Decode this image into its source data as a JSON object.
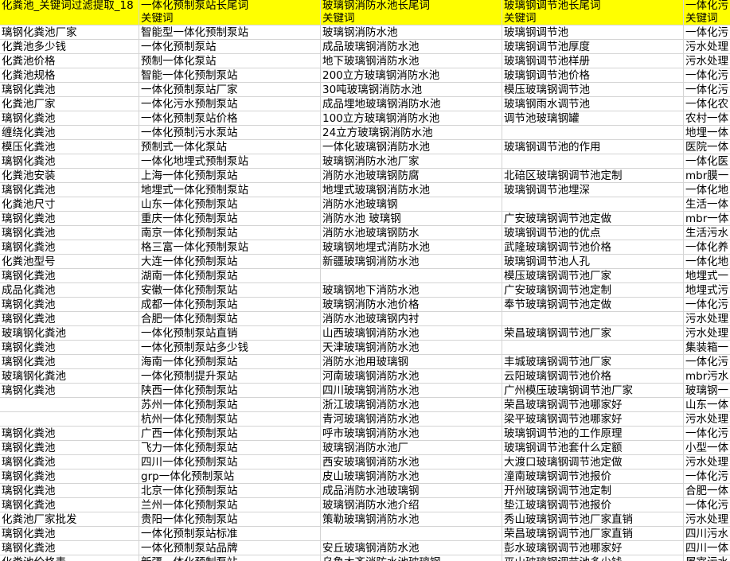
{
  "header": [
    [
      "化粪池_关键词过滤提取_18",
      null
    ],
    [
      "一体化预制泵站长尾词",
      "关键词"
    ],
    [
      "玻璃钢消防水池长尾词",
      "关键词"
    ],
    [
      "玻璃钢调节池长尾词",
      "关键词"
    ],
    [
      "一体化污",
      "关键词"
    ]
  ],
  "rows": [
    [
      "璃钢化粪池厂家",
      "智能型一体化预制泵站",
      "玻璃钢消防水池",
      "玻璃钢调节池",
      "一体化污"
    ],
    [
      "化粪池多少钱",
      "一体化预制泵站",
      "成品玻璃钢消防水池",
      "玻璃钢调节池厚度",
      "污水处理"
    ],
    [
      "化粪池价格",
      "预制一体化泵站",
      "地下玻璃钢消防水池",
      "玻璃钢调节池样册",
      "污水处理"
    ],
    [
      "化粪池规格",
      "智能一体化预制泵站",
      "200立方玻璃钢消防水池",
      "玻璃钢调节池价格",
      "一体化污"
    ],
    [
      "璃钢化粪池",
      "一体化预制泵站厂家",
      "30吨玻璃钢消防水池",
      "模压玻璃钢调节池",
      "一体化污"
    ],
    [
      "化粪池厂家",
      "一体化污水预制泵站",
      "成品埋地玻璃钢消防水池",
      "玻璃钢雨水调节池",
      "一体化农"
    ],
    [
      "璃钢化粪池",
      "一体化预制泵站价格",
      "100立方玻璃钢消防水池",
      "调节池玻璃钢罐",
      "农村一体"
    ],
    [
      "缠绕化粪池",
      "一体化预制污水泵站",
      "24立方玻璃钢消防水池",
      null,
      "地埋一体"
    ],
    [
      "模压化粪池",
      "预制式一体化泵站",
      "一体化玻璃钢消防水池",
      "玻璃钢调节池的作用",
      "医院一体"
    ],
    [
      "璃钢化粪池",
      "一体化地埋式预制泵站",
      "玻璃钢消防水池厂家",
      null,
      "一体化医"
    ],
    [
      "化粪池安装",
      "上海一体化预制泵站",
      "消防水池玻璃钢防腐",
      "北碚区玻璃钢调节池定制",
      "mbr膜一"
    ],
    [
      "璃钢化粪池",
      "地埋式一体化预制泵站",
      "地埋式玻璃钢消防水池",
      "玻璃钢调节池埋深",
      "一体化地"
    ],
    [
      "化粪池尺寸",
      "山东一体化预制泵站",
      "消防水池玻璃钢",
      null,
      "生活一体"
    ],
    [
      "璃钢化粪池",
      "重庆一体化预制泵站",
      "消防水池 玻璃钢",
      "广安玻璃钢调节池定做",
      "mbr一体"
    ],
    [
      "璃钢化粪池",
      "南京一体化预制泵站",
      "消防水池玻璃钢防水",
      "玻璃钢调节池的优点",
      "生活污水"
    ],
    [
      "璃钢化粪池",
      "格三富一体化预制泵站",
      "玻璃钢地埋式消防水池",
      "武隆玻璃钢调节池价格",
      "一体化养"
    ],
    [
      "化粪池型号",
      "大连一体化预制泵站",
      "新疆玻璃钢消防水池",
      "玻璃钢调节池人孔",
      "一体化地"
    ],
    [
      "璃钢化粪池",
      "湖南一体化预制泵站",
      null,
      "模压玻璃钢调节池厂家",
      "地埋式一"
    ],
    [
      "成品化粪池",
      "安徽一体化预制泵站",
      "玻璃钢地下消防水池",
      "广安玻璃钢调节池定制",
      "地埋式污"
    ],
    [
      "璃钢化粪池",
      "成都一体化预制泵站",
      "玻璃钢消防水池价格",
      "奉节玻璃钢调节池定做",
      "一体化污"
    ],
    [
      "璃钢化粪池",
      "合肥一体化预制泵站",
      "消防水池玻璃钢内衬",
      null,
      "污水处理"
    ],
    [
      "玻璃钢化粪池",
      "一体化预制泵站直销",
      "山西玻璃钢消防水池",
      "荣昌玻璃钢调节池厂家",
      "污水处理"
    ],
    [
      "璃钢化粪池",
      "一体化预制泵站多少钱",
      "天津玻璃钢消防水池",
      null,
      "集装箱一"
    ],
    [
      "璃钢化粪池",
      "海南一体化预制泵站",
      "消防水池用玻璃钢",
      "丰城玻璃钢调节池厂家",
      "一体化污"
    ],
    [
      "玻璃钢化粪池",
      "一体化预制提升泵站",
      "河南玻璃钢消防水池",
      "云阳玻璃钢调节池价格",
      "mbr污水"
    ],
    [
      "璃钢化粪池",
      "陕西一体化预制泵站",
      "四川玻璃钢消防水池",
      "广州模压玻璃钢调节池厂家",
      "玻璃钢一"
    ],
    [
      null,
      "苏州一体化预制泵站",
      "浙江玻璃钢消防水池",
      "荣昌玻璃钢调节池哪家好",
      "山东一体"
    ],
    [
      null,
      "杭州一体化预制泵站",
      "青河玻璃钢消防水池",
      "梁平玻璃钢调节池哪家好",
      "污水处理"
    ],
    [
      "璃钢化粪池",
      "广西一体化预制泵站",
      "呼市玻璃钢消防水池",
      "玻璃钢调节池的工作原理",
      "一体化污"
    ],
    [
      "璃钢化粪池",
      "飞力一体化预制泵站",
      "玻璃钢消防水池厂",
      "玻璃钢调节池套什么定额",
      "小型一体"
    ],
    [
      "璃钢化粪池",
      "四川一体化预制泵站",
      "西安玻璃钢消防水池",
      "大渡口玻璃钢调节池定做",
      "污水处理"
    ],
    [
      "璃钢化粪池",
      "grp一体化预制泵站",
      "皮山玻璃钢消防水池",
      "潼南玻璃钢调节池报价",
      "一体化污"
    ],
    [
      "璃钢化粪池",
      "北京一体化预制泵站",
      "成品消防水池玻璃钢",
      "开州玻璃钢调节池定制",
      "合肥一体"
    ],
    [
      "璃钢化粪池",
      "兰州一体化预制泵站",
      "玻璃钢消防水池介绍",
      "垫江玻璃钢调节池报价",
      "一体化污"
    ],
    [
      "化粪池厂家批发",
      "贵阳一体化预制泵站",
      "策勒玻璃钢消防水池",
      "秀山玻璃钢调节池厂家直销",
      "污水处理"
    ],
    [
      "璃钢化粪池",
      "一体化预制泵站标准",
      null,
      "荣昌玻璃钢调节池厂家直销",
      "四川污水"
    ],
    [
      "璃钢化粪池",
      "一体化预制泵站品牌",
      "安丘玻璃钢消防水池",
      "彭水玻璃钢调节池哪家好",
      "四川一体"
    ],
    [
      "化粪池价格表",
      "新疆一体化预制泵站",
      "乌鲁木齐消防水池玻璃钢",
      "巫山玻璃钢调节池多少钱",
      "屠宰污水"
    ]
  ]
}
